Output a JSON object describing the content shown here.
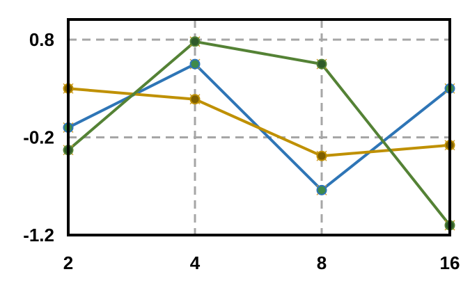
{
  "chart_data": {
    "type": "line",
    "x": [
      2,
      4,
      8,
      16
    ],
    "x_tick_labels": [
      "2",
      "4",
      "8",
      "16"
    ],
    "x_positions": "categorical",
    "y_ticks": [
      0.8,
      -0.2,
      -1.2
    ],
    "y_tick_labels": [
      "0.8",
      "-0.2",
      "-1.2"
    ],
    "ylim": [
      -1.2,
      1.0
    ],
    "grid": true,
    "grid_style": "dashed",
    "legend": "none",
    "title": "",
    "xlabel": "",
    "ylabel": "",
    "series": [
      {
        "color": "#2e75b6",
        "marker_face": "#3f8a4a",
        "values": [
          -0.1,
          0.55,
          -0.74,
          0.3
        ]
      },
      {
        "color": "#bf9000",
        "marker_face": "#7f6000",
        "values": [
          0.3,
          0.19,
          -0.39,
          -0.28
        ]
      },
      {
        "color": "#548235",
        "marker_face": "#2f5a2a",
        "values": [
          -0.33,
          0.78,
          0.55,
          -1.1
        ]
      }
    ]
  }
}
